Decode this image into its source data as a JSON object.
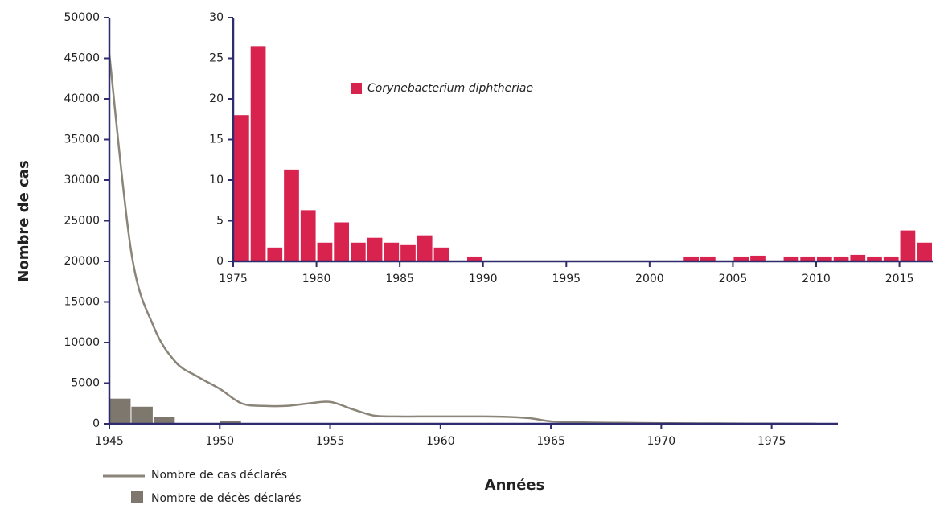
{
  "chart_data": [
    {
      "type": "line",
      "ylabel": "Nombre de cas",
      "xlabel": "Années",
      "xlim": [
        1945,
        1978
      ],
      "xticks": [
        1945,
        1950,
        1955,
        1960,
        1965,
        1970,
        1975
      ],
      "ylim": [
        0,
        50000
      ],
      "yticks": [
        0,
        5000,
        10000,
        15000,
        20000,
        25000,
        30000,
        35000,
        40000,
        45000,
        50000
      ],
      "series": [
        {
          "name": "Nombre de cas déclarés",
          "type": "line",
          "color": "#8a8578",
          "x": [
            1945,
            1946,
            1947,
            1948,
            1949,
            1950,
            1951,
            1952,
            1953,
            1954,
            1955,
            1956,
            1957,
            1958,
            1959,
            1960,
            1961,
            1962,
            1963,
            1964,
            1965,
            1966,
            1967,
            1968,
            1969,
            1970,
            1971,
            1972,
            1973,
            1974,
            1975,
            1976,
            1977
          ],
          "values": [
            45500,
            21000,
            12000,
            7600,
            5800,
            4300,
            2500,
            2200,
            2200,
            2500,
            2700,
            1800,
            1000,
            900,
            900,
            900,
            900,
            900,
            850,
            700,
            300,
            200,
            150,
            120,
            100,
            80,
            60,
            50,
            40,
            30,
            20,
            10,
            5
          ]
        },
        {
          "name": "Nombre de décès déclarés",
          "type": "bar",
          "color": "#7d776d",
          "x": [
            1945,
            1946,
            1947,
            1950
          ],
          "values": [
            3100,
            2100,
            800,
            400
          ]
        }
      ]
    },
    {
      "type": "bar",
      "xlim": [
        1975,
        2017
      ],
      "xticks": [
        1975,
        1980,
        1985,
        1990,
        1995,
        2000,
        2005,
        2010,
        2015
      ],
      "ylim": [
        0,
        30
      ],
      "yticks": [
        0,
        5,
        10,
        15,
        20,
        25,
        30
      ],
      "series": [
        {
          "name": "Corynebacterium diphtheriae",
          "color": "#d9234f",
          "x": [
            1975,
            1976,
            1977,
            1978,
            1979,
            1980,
            1981,
            1982,
            1983,
            1984,
            1985,
            1986,
            1987,
            1989,
            2002,
            2003,
            2005,
            2006,
            2008,
            2009,
            2010,
            2011,
            2012,
            2013,
            2014,
            2015,
            2016
          ],
          "values": [
            18,
            26.5,
            1.7,
            11.3,
            6.3,
            2.3,
            4.8,
            2.3,
            2.9,
            2.3,
            2,
            3.2,
            1.7,
            0.6,
            0.6,
            0.6,
            0.6,
            0.7,
            0.6,
            0.6,
            0.6,
            0.6,
            0.8,
            0.6,
            0.6,
            3.8,
            2.3
          ]
        }
      ]
    }
  ]
}
